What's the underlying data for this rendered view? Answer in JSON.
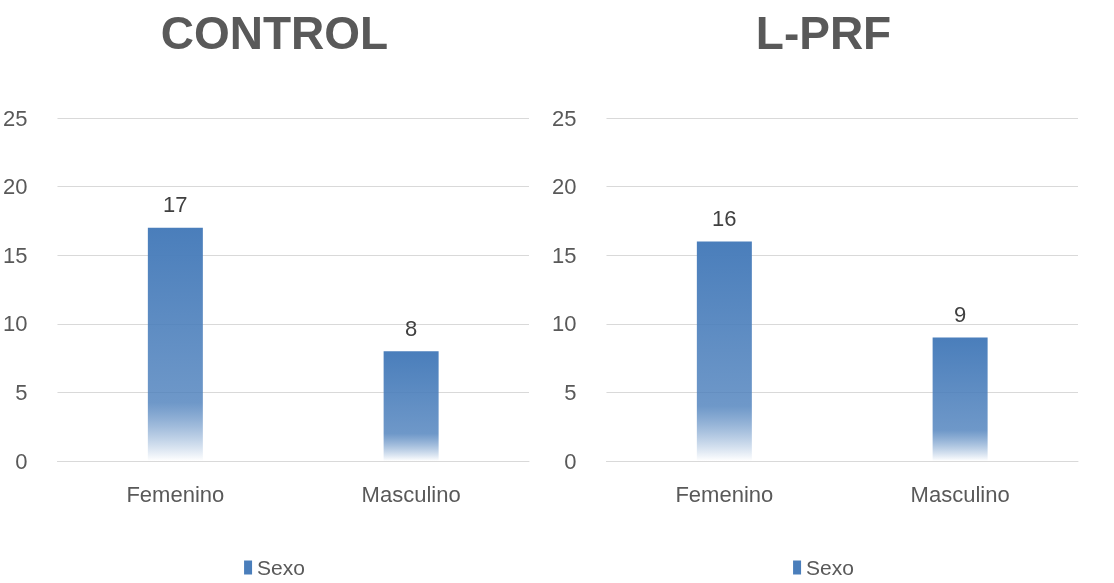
{
  "chart_data": [
    {
      "type": "bar",
      "title": "CONTROL",
      "categories": [
        "Femenino",
        "Masculino"
      ],
      "series": [
        {
          "name": "Sexo",
          "color": "#4a7ebb",
          "values": [
            17,
            8
          ]
        }
      ],
      "ylim": [
        0,
        25
      ],
      "yticks": [
        0,
        5,
        10,
        15,
        20,
        25
      ],
      "grid": "y",
      "legend": "bottom",
      "data_labels": true
    },
    {
      "type": "bar",
      "title": "L-PRF",
      "categories": [
        "Femenino",
        "Masculino"
      ],
      "series": [
        {
          "name": "Sexo",
          "color": "#4a7ebb",
          "values": [
            16,
            9
          ]
        }
      ],
      "ylim": [
        0,
        25
      ],
      "yticks": [
        0,
        5,
        10,
        15,
        20,
        25
      ],
      "grid": "y",
      "legend": "bottom",
      "data_labels": true
    }
  ]
}
